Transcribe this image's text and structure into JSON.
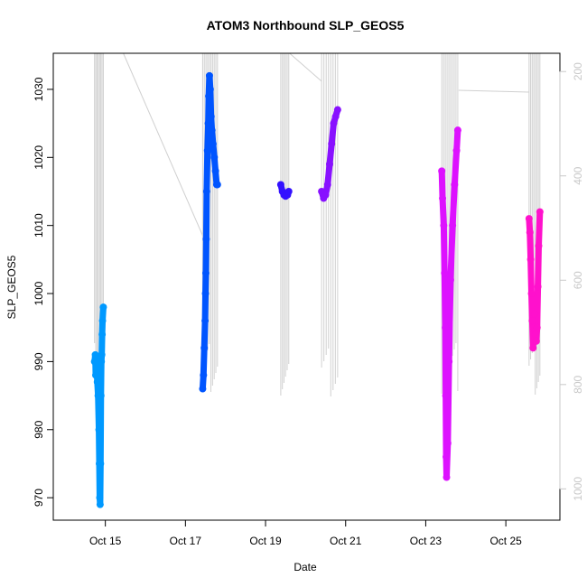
{
  "chart_data": {
    "type": "scatter",
    "title": "ATOM3 Northbound SLP_GEOS5",
    "xlabel": "Date",
    "ylabel": "SLP_GEOS5",
    "x_unit": "day of October",
    "xlim": [
      13.7,
      26.35
    ],
    "ylim": [
      966.7,
      1035.3
    ],
    "x_ticks": [
      15,
      17,
      19,
      21,
      23,
      25
    ],
    "x_tick_labels": [
      "Oct 15",
      "Oct 17",
      "Oct 19",
      "Oct 21",
      "Oct 23",
      "Oct 25"
    ],
    "y_ticks": [
      970,
      980,
      990,
      1000,
      1010,
      1020,
      1030
    ],
    "y_tick_labels": [
      "970",
      "980",
      "990",
      "1000",
      "1010",
      "1020",
      "1030"
    ],
    "right_axis": {
      "color": "#c8c8c8",
      "ticks": [
        200,
        400,
        600,
        800,
        1000
      ],
      "tick_labels": [
        "200",
        "400",
        "600",
        "800",
        "1000"
      ],
      "pixel_anchor": {
        "value_at_top": 165,
        "value_at_bottom": 1060
      },
      "profile_line_color": "#d0d0d0"
    },
    "grid": false,
    "legend": "none",
    "series": [
      {
        "color": "#0099ff",
        "points": [
          [
            14.73,
            990
          ],
          [
            14.75,
            991
          ],
          [
            14.76,
            988
          ],
          [
            14.78,
            990
          ],
          [
            14.8,
            987
          ],
          [
            14.82,
            985
          ],
          [
            14.84,
            980
          ],
          [
            14.85,
            975
          ],
          [
            14.86,
            970
          ],
          [
            14.87,
            969
          ],
          [
            14.88,
            975
          ],
          [
            14.89,
            985
          ],
          [
            14.9,
            990
          ],
          [
            14.91,
            991
          ],
          [
            14.92,
            994
          ],
          [
            14.93,
            996
          ],
          [
            14.95,
            998
          ]
        ]
      },
      {
        "color": "#0055ff",
        "points": [
          [
            17.43,
            986
          ],
          [
            17.45,
            988
          ],
          [
            17.47,
            992
          ],
          [
            17.49,
            996
          ],
          [
            17.5,
            1000
          ],
          [
            17.51,
            1003
          ],
          [
            17.52,
            1008
          ],
          [
            17.53,
            1015
          ],
          [
            17.55,
            1021
          ],
          [
            17.57,
            1025
          ],
          [
            17.58,
            1029
          ],
          [
            17.6,
            1032
          ],
          [
            17.62,
            1030
          ],
          [
            17.64,
            1026
          ],
          [
            17.66,
            1024
          ],
          [
            17.69,
            1022
          ],
          [
            17.72,
            1020
          ],
          [
            17.75,
            1018
          ],
          [
            17.78,
            1016
          ],
          [
            17.8,
            1016
          ]
        ]
      },
      {
        "color": "#3311ff",
        "points": [
          [
            19.38,
            1016
          ],
          [
            19.42,
            1015
          ],
          [
            19.46,
            1014.5
          ],
          [
            19.5,
            1014.3
          ],
          [
            19.55,
            1014.5
          ],
          [
            19.58,
            1015
          ]
        ]
      },
      {
        "color": "#8811ff",
        "points": [
          [
            20.4,
            1015
          ],
          [
            20.45,
            1014
          ],
          [
            20.5,
            1014.5
          ],
          [
            20.55,
            1016
          ],
          [
            20.6,
            1019
          ],
          [
            20.65,
            1022
          ],
          [
            20.7,
            1025
          ],
          [
            20.75,
            1026
          ],
          [
            20.8,
            1027
          ]
        ]
      },
      {
        "color": "#dd11ff",
        "points": [
          [
            23.4,
            1018
          ],
          [
            23.42,
            1014
          ],
          [
            23.45,
            1010
          ],
          [
            23.47,
            1003
          ],
          [
            23.49,
            995
          ],
          [
            23.5,
            985
          ],
          [
            23.51,
            976
          ],
          [
            23.52,
            973
          ],
          [
            23.55,
            978
          ],
          [
            23.58,
            990
          ],
          [
            23.62,
            1002
          ],
          [
            23.67,
            1010
          ],
          [
            23.72,
            1016
          ],
          [
            23.77,
            1021
          ],
          [
            23.8,
            1024
          ]
        ]
      },
      {
        "color": "#ff11cc",
        "points": [
          [
            25.58,
            1011
          ],
          [
            25.6,
            1009
          ],
          [
            25.62,
            1005
          ],
          [
            25.64,
            1000
          ],
          [
            25.66,
            996
          ],
          [
            25.68,
            992
          ],
          [
            25.7,
            995
          ],
          [
            25.72,
            997
          ],
          [
            25.74,
            994
          ],
          [
            25.76,
            993
          ],
          [
            25.78,
            995
          ],
          [
            25.8,
            1001
          ],
          [
            25.82,
            1007
          ],
          [
            25.85,
            1012
          ]
        ]
      }
    ]
  }
}
